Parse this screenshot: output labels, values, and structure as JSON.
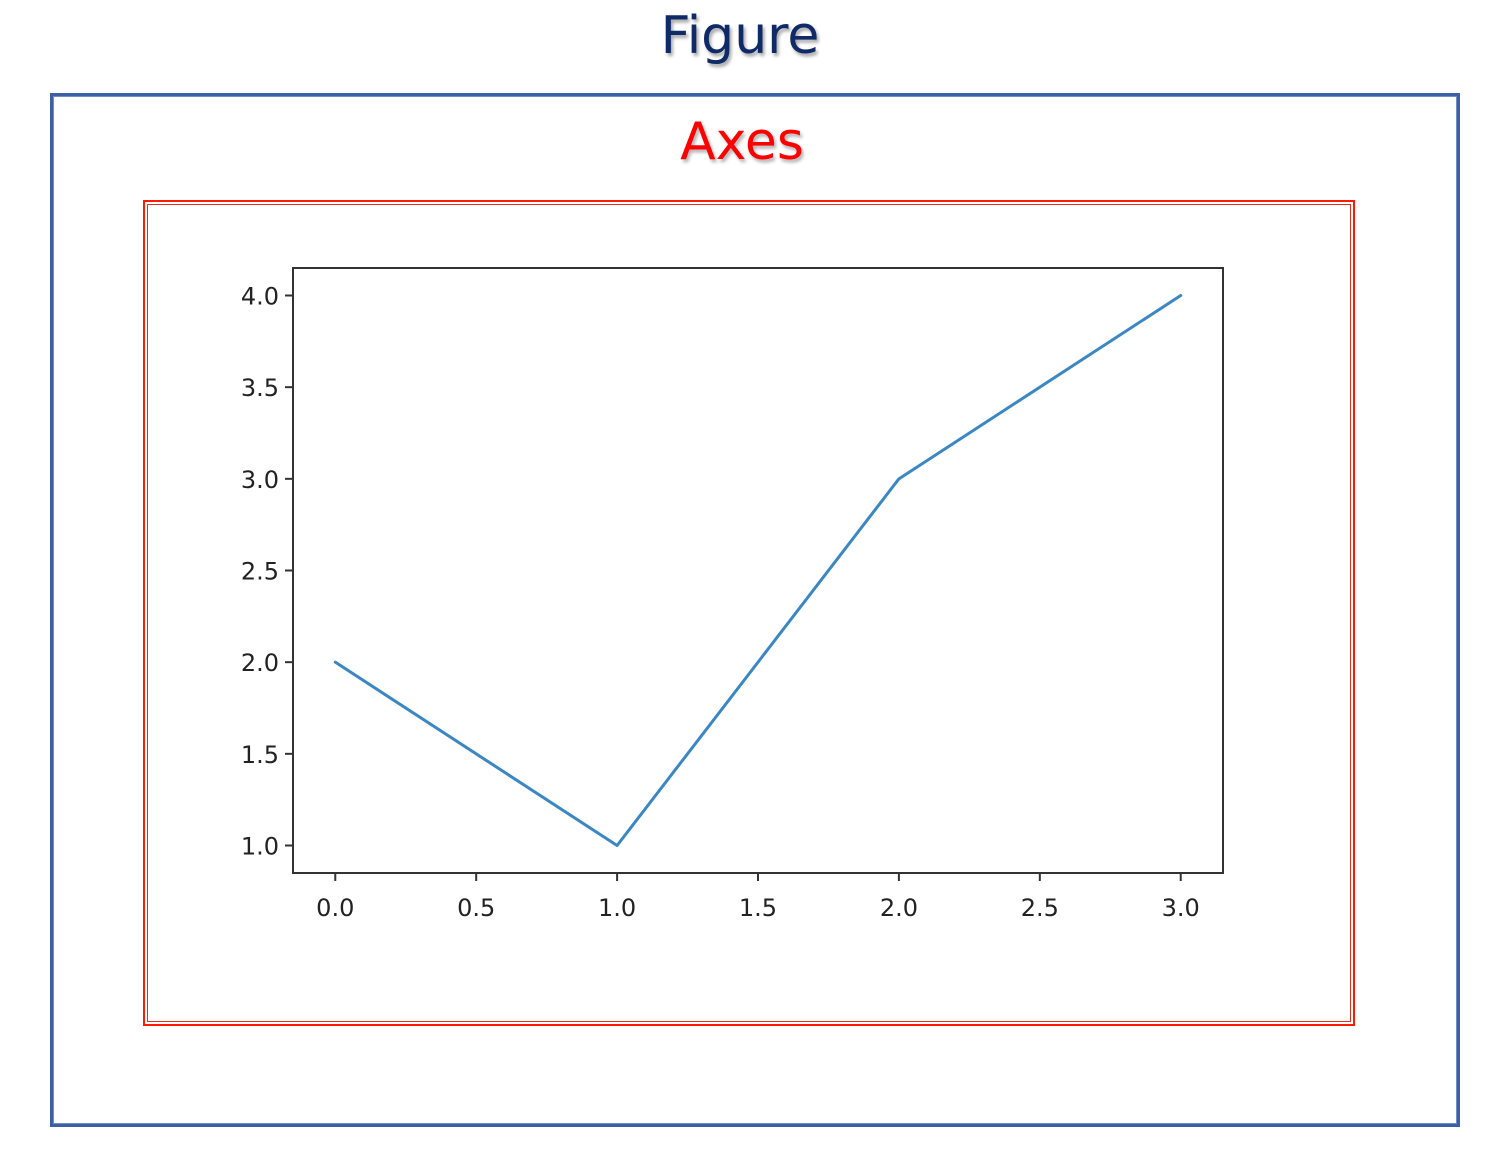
{
  "labels": {
    "figure": "Figure",
    "axes": "Axes"
  },
  "colors": {
    "figure_label": "#0f2a66",
    "axes_label": "#ff0000",
    "figure_border": "#3d5fa6",
    "axes_border": "#ff1a00",
    "line": "#3b87c4"
  },
  "chart_data": {
    "type": "line",
    "title": "",
    "xlabel": "",
    "ylabel": "",
    "x": [
      0,
      1,
      2,
      3
    ],
    "series": [
      {
        "values": [
          2,
          1,
          3,
          4
        ]
      }
    ],
    "xlim": [
      -0.15,
      3.15
    ],
    "ylim": [
      0.85,
      4.15
    ],
    "xticks": [
      "0.0",
      "0.5",
      "1.0",
      "1.5",
      "2.0",
      "2.5",
      "3.0"
    ],
    "yticks": [
      "1.0",
      "1.5",
      "2.0",
      "2.5",
      "3.0",
      "3.5",
      "4.0"
    ],
    "grid": false
  }
}
